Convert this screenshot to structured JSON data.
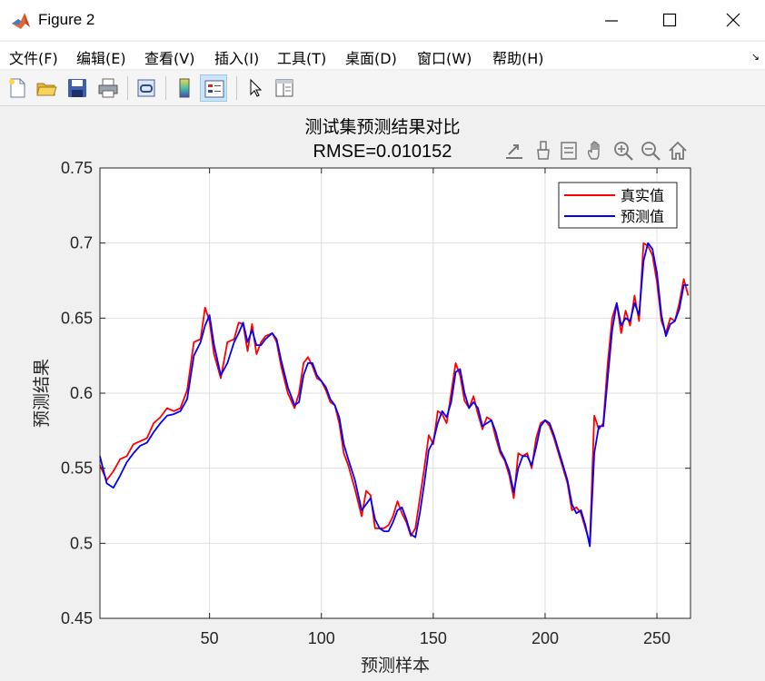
{
  "window": {
    "title": "Figure 2",
    "controls": [
      "minimize",
      "maximize",
      "close"
    ]
  },
  "menu": {
    "items": [
      "文件(F)",
      "编辑(E)",
      "查看(V)",
      "插入(I)",
      "工具(T)",
      "桌面(D)",
      "窗口(W)",
      "帮助(H)"
    ],
    "overflow_arrow": "↘"
  },
  "toolbar": {
    "buttons": [
      "new-figure-icon",
      "open-file-icon",
      "save-icon",
      "print-icon",
      "link-plot-icon",
      "colorbar-icon",
      "legend-icon",
      "edit-plot-icon",
      "property-inspector-icon"
    ]
  },
  "axes_toolbar": {
    "buttons": [
      "export-icon",
      "brush-icon",
      "data-tips-icon",
      "pan-icon",
      "zoom-in-icon",
      "zoom-out-icon",
      "home-icon"
    ]
  },
  "chart_data": {
    "type": "line",
    "title": "测试集预测结果对比",
    "subtitle": "RMSE=0.010152",
    "xlabel": "预测样本",
    "ylabel": "预测结果",
    "xlim": [
      1,
      265
    ],
    "ylim": [
      0.45,
      0.75
    ],
    "xticks": [
      50,
      100,
      150,
      200,
      250
    ],
    "xtick_labels": [
      "50",
      "100",
      "150",
      "200",
      "250"
    ],
    "yticks": [
      0.45,
      0.5,
      0.55,
      0.6,
      0.65,
      0.7,
      0.75
    ],
    "ytick_labels": [
      "0.45",
      "0.5",
      "0.55",
      "0.6",
      "0.65",
      "0.7",
      "0.75"
    ],
    "grid": true,
    "legend_position": "top-right",
    "series": [
      {
        "name": "真实值",
        "color": "#ff0000",
        "points": [
          [
            1,
            0.552
          ],
          [
            4,
            0.542
          ],
          [
            7,
            0.548
          ],
          [
            10,
            0.556
          ],
          [
            13,
            0.558
          ],
          [
            16,
            0.566
          ],
          [
            19,
            0.568
          ],
          [
            22,
            0.57
          ],
          [
            25,
            0.58
          ],
          [
            28,
            0.584
          ],
          [
            31,
            0.59
          ],
          [
            34,
            0.588
          ],
          [
            37,
            0.59
          ],
          [
            40,
            0.602
          ],
          [
            43,
            0.634
          ],
          [
            46,
            0.636
          ],
          [
            48,
            0.657
          ],
          [
            50,
            0.648
          ],
          [
            52,
            0.626
          ],
          [
            55,
            0.61
          ],
          [
            58,
            0.634
          ],
          [
            61,
            0.636
          ],
          [
            63,
            0.647
          ],
          [
            65,
            0.646
          ],
          [
            67,
            0.628
          ],
          [
            69,
            0.646
          ],
          [
            71,
            0.626
          ],
          [
            73,
            0.634
          ],
          [
            75,
            0.638
          ],
          [
            78,
            0.64
          ],
          [
            80,
            0.634
          ],
          [
            82,
            0.618
          ],
          [
            85,
            0.6
          ],
          [
            88,
            0.59
          ],
          [
            90,
            0.6
          ],
          [
            92,
            0.62
          ],
          [
            94,
            0.624
          ],
          [
            96,
            0.618
          ],
          [
            98,
            0.61
          ],
          [
            100,
            0.608
          ],
          [
            102,
            0.602
          ],
          [
            104,
            0.594
          ],
          [
            106,
            0.592
          ],
          [
            108,
            0.58
          ],
          [
            110,
            0.56
          ],
          [
            112,
            0.552
          ],
          [
            115,
            0.536
          ],
          [
            118,
            0.518
          ],
          [
            120,
            0.535
          ],
          [
            122,
            0.532
          ],
          [
            124,
            0.51
          ],
          [
            126,
            0.51
          ],
          [
            128,
            0.51
          ],
          [
            130,
            0.512
          ],
          [
            132,
            0.518
          ],
          [
            134,
            0.528
          ],
          [
            136,
            0.52
          ],
          [
            138,
            0.514
          ],
          [
            140,
            0.505
          ],
          [
            142,
            0.51
          ],
          [
            144,
            0.53
          ],
          [
            146,
            0.55
          ],
          [
            148,
            0.572
          ],
          [
            150,
            0.566
          ],
          [
            152,
            0.588
          ],
          [
            154,
            0.586
          ],
          [
            156,
            0.58
          ],
          [
            158,
            0.6
          ],
          [
            160,
            0.62
          ],
          [
            162,
            0.612
          ],
          [
            164,
            0.595
          ],
          [
            166,
            0.59
          ],
          [
            168,
            0.598
          ],
          [
            170,
            0.586
          ],
          [
            172,
            0.576
          ],
          [
            174,
            0.584
          ],
          [
            176,
            0.582
          ],
          [
            178,
            0.57
          ],
          [
            180,
            0.56
          ],
          [
            182,
            0.555
          ],
          [
            184,
            0.545
          ],
          [
            186,
            0.53
          ],
          [
            188,
            0.56
          ],
          [
            190,
            0.558
          ],
          [
            192,
            0.56
          ],
          [
            194,
            0.55
          ],
          [
            196,
            0.57
          ],
          [
            198,
            0.58
          ],
          [
            200,
            0.582
          ],
          [
            202,
            0.578
          ],
          [
            204,
            0.57
          ],
          [
            206,
            0.56
          ],
          [
            208,
            0.55
          ],
          [
            210,
            0.54
          ],
          [
            212,
            0.522
          ],
          [
            214,
            0.524
          ],
          [
            216,
            0.52
          ],
          [
            218,
            0.51
          ],
          [
            220,
            0.5
          ],
          [
            222,
            0.585
          ],
          [
            224,
            0.576
          ],
          [
            226,
            0.58
          ],
          [
            228,
            0.62
          ],
          [
            230,
            0.65
          ],
          [
            232,
            0.66
          ],
          [
            234,
            0.64
          ],
          [
            236,
            0.655
          ],
          [
            238,
            0.645
          ],
          [
            240,
            0.665
          ],
          [
            242,
            0.648
          ],
          [
            244,
            0.7
          ],
          [
            246,
            0.698
          ],
          [
            248,
            0.692
          ],
          [
            250,
            0.674
          ],
          [
            252,
            0.648
          ],
          [
            254,
            0.64
          ],
          [
            256,
            0.65
          ],
          [
            258,
            0.648
          ],
          [
            260,
            0.66
          ],
          [
            262,
            0.676
          ],
          [
            264,
            0.665
          ]
        ]
      },
      {
        "name": "预测值",
        "color": "#0000ff",
        "points": [
          [
            1,
            0.558
          ],
          [
            4,
            0.54
          ],
          [
            7,
            0.537
          ],
          [
            10,
            0.545
          ],
          [
            13,
            0.554
          ],
          [
            16,
            0.56
          ],
          [
            19,
            0.565
          ],
          [
            22,
            0.567
          ],
          [
            25,
            0.574
          ],
          [
            28,
            0.58
          ],
          [
            31,
            0.585
          ],
          [
            34,
            0.586
          ],
          [
            37,
            0.588
          ],
          [
            40,
            0.596
          ],
          [
            43,
            0.625
          ],
          [
            46,
            0.634
          ],
          [
            48,
            0.645
          ],
          [
            50,
            0.652
          ],
          [
            52,
            0.632
          ],
          [
            55,
            0.612
          ],
          [
            58,
            0.62
          ],
          [
            61,
            0.634
          ],
          [
            63,
            0.64
          ],
          [
            65,
            0.647
          ],
          [
            67,
            0.634
          ],
          [
            69,
            0.642
          ],
          [
            71,
            0.632
          ],
          [
            73,
            0.632
          ],
          [
            75,
            0.636
          ],
          [
            78,
            0.64
          ],
          [
            80,
            0.636
          ],
          [
            82,
            0.622
          ],
          [
            85,
            0.604
          ],
          [
            88,
            0.592
          ],
          [
            90,
            0.594
          ],
          [
            92,
            0.612
          ],
          [
            94,
            0.62
          ],
          [
            96,
            0.62
          ],
          [
            98,
            0.612
          ],
          [
            100,
            0.608
          ],
          [
            102,
            0.604
          ],
          [
            104,
            0.596
          ],
          [
            106,
            0.592
          ],
          [
            108,
            0.584
          ],
          [
            110,
            0.566
          ],
          [
            112,
            0.556
          ],
          [
            115,
            0.542
          ],
          [
            118,
            0.522
          ],
          [
            120,
            0.526
          ],
          [
            122,
            0.53
          ],
          [
            124,
            0.516
          ],
          [
            126,
            0.51
          ],
          [
            128,
            0.508
          ],
          [
            130,
            0.508
          ],
          [
            132,
            0.514
          ],
          [
            134,
            0.522
          ],
          [
            136,
            0.524
          ],
          [
            138,
            0.516
          ],
          [
            140,
            0.506
          ],
          [
            142,
            0.504
          ],
          [
            144,
            0.52
          ],
          [
            146,
            0.54
          ],
          [
            148,
            0.562
          ],
          [
            150,
            0.568
          ],
          [
            152,
            0.58
          ],
          [
            154,
            0.588
          ],
          [
            156,
            0.584
          ],
          [
            158,
            0.594
          ],
          [
            160,
            0.614
          ],
          [
            162,
            0.616
          ],
          [
            164,
            0.6
          ],
          [
            166,
            0.59
          ],
          [
            168,
            0.594
          ],
          [
            170,
            0.59
          ],
          [
            172,
            0.578
          ],
          [
            174,
            0.58
          ],
          [
            176,
            0.582
          ],
          [
            178,
            0.574
          ],
          [
            180,
            0.562
          ],
          [
            182,
            0.556
          ],
          [
            184,
            0.548
          ],
          [
            186,
            0.534
          ],
          [
            188,
            0.55
          ],
          [
            190,
            0.558
          ],
          [
            192,
            0.558
          ],
          [
            194,
            0.552
          ],
          [
            196,
            0.564
          ],
          [
            198,
            0.578
          ],
          [
            200,
            0.582
          ],
          [
            202,
            0.58
          ],
          [
            204,
            0.572
          ],
          [
            206,
            0.562
          ],
          [
            208,
            0.552
          ],
          [
            210,
            0.542
          ],
          [
            212,
            0.526
          ],
          [
            214,
            0.52
          ],
          [
            216,
            0.522
          ],
          [
            218,
            0.512
          ],
          [
            220,
            0.498
          ],
          [
            222,
            0.56
          ],
          [
            224,
            0.578
          ],
          [
            226,
            0.578
          ],
          [
            228,
            0.61
          ],
          [
            230,
            0.642
          ],
          [
            232,
            0.66
          ],
          [
            234,
            0.645
          ],
          [
            236,
            0.65
          ],
          [
            238,
            0.648
          ],
          [
            240,
            0.66
          ],
          [
            242,
            0.652
          ],
          [
            244,
            0.688
          ],
          [
            246,
            0.7
          ],
          [
            248,
            0.696
          ],
          [
            250,
            0.68
          ],
          [
            252,
            0.652
          ],
          [
            254,
            0.638
          ],
          [
            256,
            0.646
          ],
          [
            258,
            0.648
          ],
          [
            260,
            0.656
          ],
          [
            262,
            0.672
          ],
          [
            264,
            0.672
          ]
        ]
      }
    ]
  }
}
